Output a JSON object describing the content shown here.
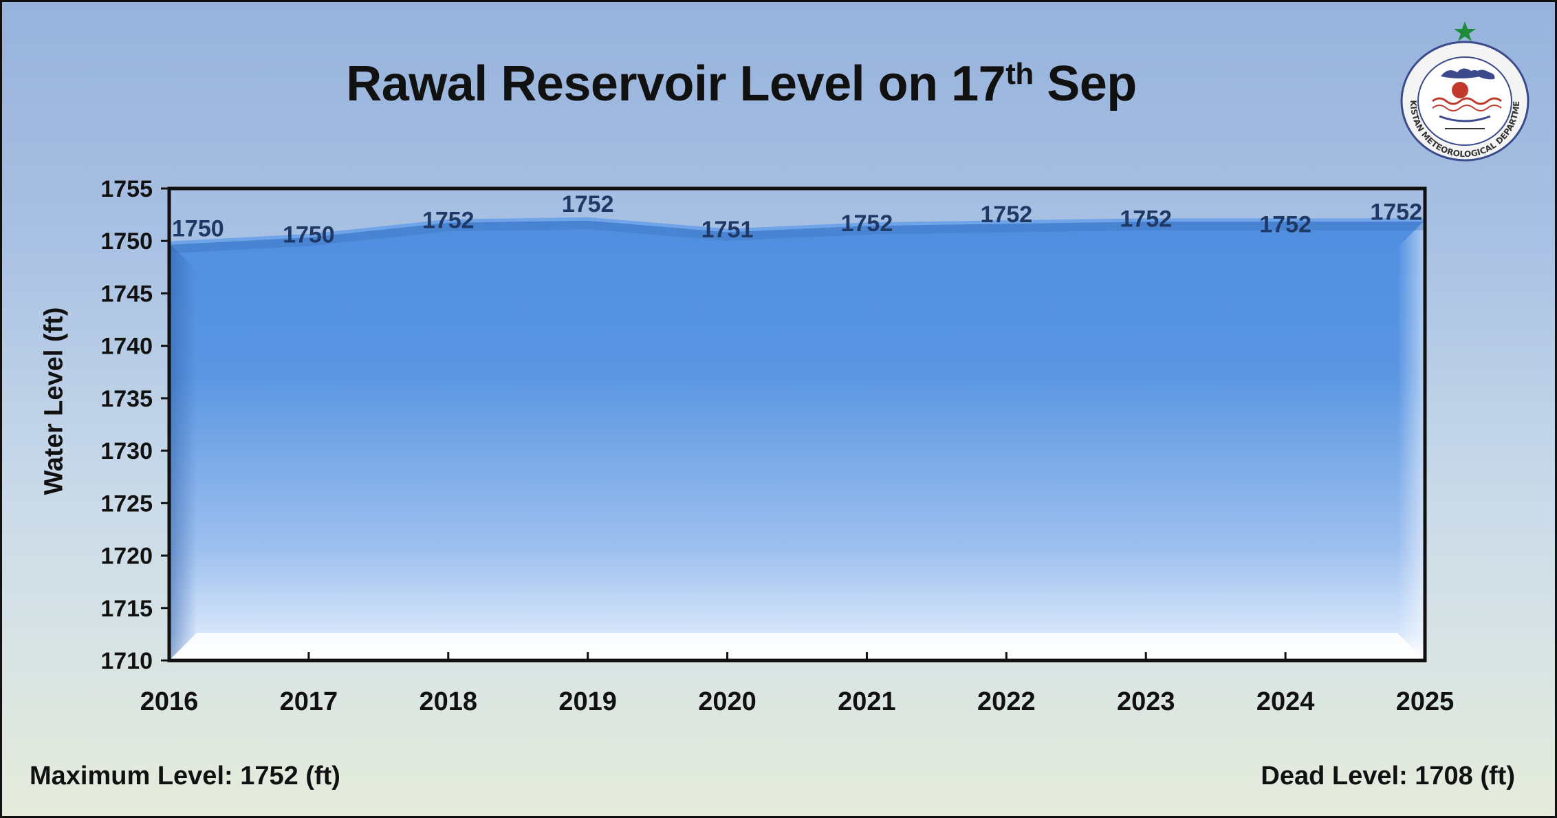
{
  "colors": {
    "line": "#6fa4e8",
    "fill_top": "#4f8ee0",
    "fill_bottom": "#ffffff",
    "data_label": "#1f3864",
    "axis_text": "#111111",
    "logo_star": "#1e8b3a",
    "logo_ring": "#3a4a8a"
  },
  "chart_data": {
    "type": "area",
    "title_main": "Rawal Reservoir Level on 17",
    "title_sup": "th",
    "title_end": " Sep",
    "ylabel": "Water Level (ft)",
    "xlabel": "",
    "categories": [
      "2016",
      "2017",
      "2018",
      "2019",
      "2020",
      "2021",
      "2022",
      "2023",
      "2024",
      "2025"
    ],
    "values": [
      1749.8,
      1750.5,
      1751.9,
      1752.1,
      1751.0,
      1751.6,
      1751.8,
      1752.0,
      1752.0,
      1752.0
    ],
    "data_labels": [
      "1750",
      "1750",
      "1752",
      "1752",
      "1751",
      "1752",
      "1752",
      "1752",
      "1752",
      "1752"
    ],
    "ylim": [
      1710,
      1755
    ],
    "yticks": [
      "1710",
      "1715",
      "1720",
      "1725",
      "1730",
      "1735",
      "1740",
      "1745",
      "1750",
      "1755"
    ],
    "grid": false,
    "legend": "none"
  },
  "footer": {
    "max_level": "Maximum Level: 1752 (ft)",
    "dead_level": "Dead Level: 1708 (ft)"
  },
  "logo": {
    "name": "PAKISTAN METEOROLOGICAL DEPARTMENT",
    "icon": "pmd-emblem-icon"
  }
}
